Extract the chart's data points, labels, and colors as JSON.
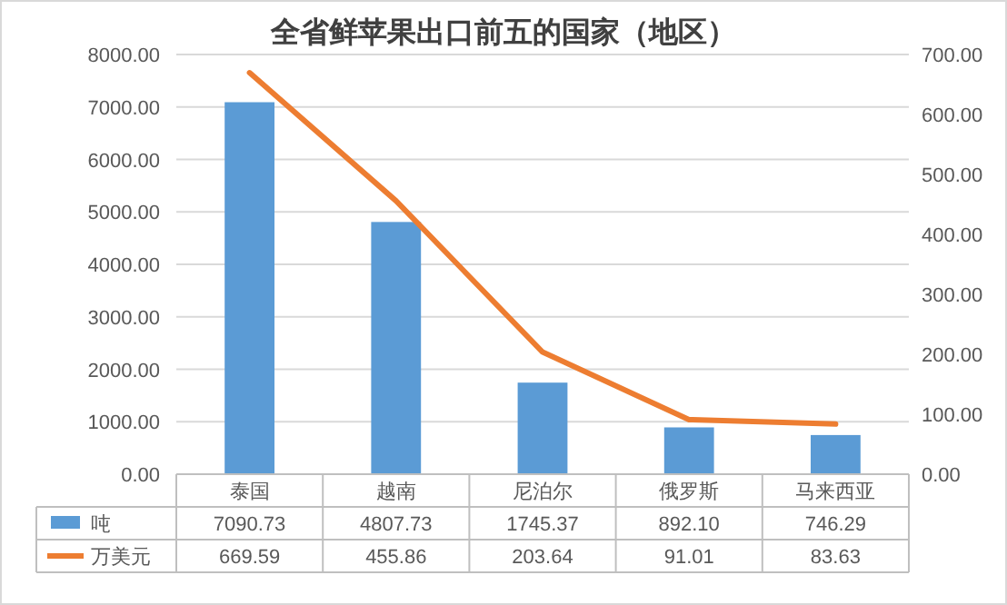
{
  "chart_data": {
    "type": "bar",
    "title": "全省鲜苹果出口前五的国家（地区）",
    "categories": [
      "泰国",
      "越南",
      "尼泊尔",
      "俄罗斯",
      "马来西亚"
    ],
    "series": [
      {
        "name": "吨",
        "color": "#5b9bd5",
        "values": [
          7090.73,
          4807.73,
          1745.37,
          892.1,
          746.29
        ],
        "value_labels": [
          "7090.73",
          "4807.73",
          "1745.37",
          "892.10",
          "746.29"
        ]
      },
      {
        "name": "万美元",
        "type": "line",
        "axis": "y2",
        "color": "#ed7d31",
        "values": [
          669.59,
          455.86,
          203.64,
          91.01,
          83.63
        ],
        "value_labels": [
          "669.59",
          "455.86",
          "203.64",
          "91.01",
          "83.63"
        ]
      }
    ],
    "ylim": [
      0,
      8000
    ],
    "yticks": [
      {
        "value": 0,
        "label": "0.00"
      },
      {
        "value": 1000,
        "label": "1000.00"
      },
      {
        "value": 2000,
        "label": "2000.00"
      },
      {
        "value": 3000,
        "label": "3000.00"
      },
      {
        "value": 4000,
        "label": "4000.00"
      },
      {
        "value": 5000,
        "label": "5000.00"
      },
      {
        "value": 6000,
        "label": "6000.00"
      },
      {
        "value": 7000,
        "label": "7000.00"
      },
      {
        "value": 8000,
        "label": "8000.00"
      }
    ],
    "y2lim": [
      0,
      700
    ],
    "y2ticks": [
      {
        "value": 0,
        "label": "0.00"
      },
      {
        "value": 100,
        "label": "100.00"
      },
      {
        "value": 200,
        "label": "200.00"
      },
      {
        "value": 300,
        "label": "300.00"
      },
      {
        "value": 400,
        "label": "400.00"
      },
      {
        "value": 500,
        "label": "500.00"
      },
      {
        "value": 600,
        "label": "600.00"
      },
      {
        "value": 700,
        "label": "700.00"
      }
    ],
    "grid": "y",
    "legend": "bottom",
    "marker": "none",
    "line_style": "solid"
  }
}
